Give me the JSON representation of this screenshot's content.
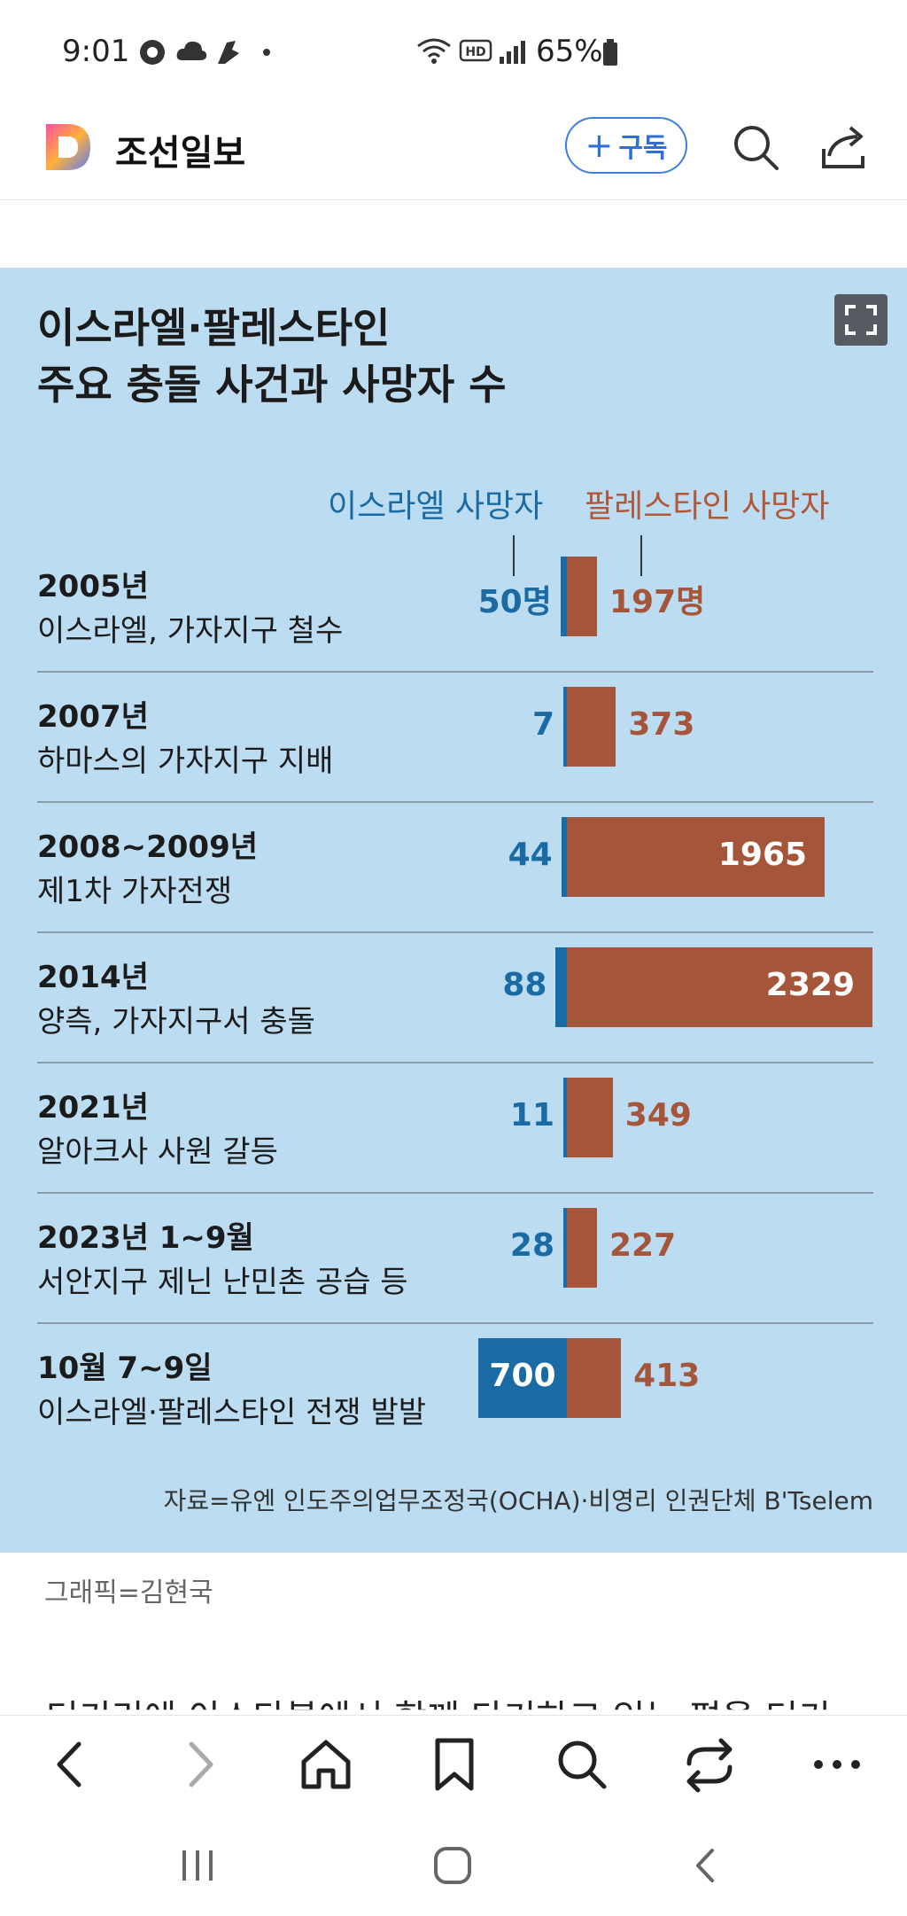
{
  "status_bar": {
    "time": "9:01",
    "battery": "65%"
  },
  "app_bar": {
    "brand": "조선일보",
    "subscribe_label": "구독"
  },
  "infographic": {
    "title_line1": "이스라엘·팔레스타인",
    "title_line2": "주요 충돌 사건과 사망자 수",
    "legend_israel": "이스라엘 사망자",
    "legend_palestine": "팔레스타인 사망자",
    "source": "자료=유엔 인도주의업무조정국(OCHA)·비영리 인권단체 B'Tselem"
  },
  "chart_data": {
    "type": "bar",
    "title": "이스라엘·팔레스타인 주요 충돌 사건과 사망자 수",
    "categories": [
      {
        "year": "2005년",
        "event": "이스라엘, 가자지구 철수"
      },
      {
        "year": "2007년",
        "event": "하마스의 가자지구 지배"
      },
      {
        "year": "2008~2009년",
        "event": "제1차 가자전쟁"
      },
      {
        "year": "2014년",
        "event": "양측, 가자지구서 충돌"
      },
      {
        "year": "2021년",
        "event": "알아크사 사원 갈등"
      },
      {
        "year": "2023년 1~9월",
        "event": "서안지구 제닌 난민촌 공습 등"
      },
      {
        "year": "10월 7~9일",
        "event": "이스라엘·팔레스타인 전쟁 발발"
      }
    ],
    "series": [
      {
        "name": "이스라엘 사망자",
        "values": [
          50,
          7,
          44,
          88,
          11,
          28,
          700
        ],
        "labels": [
          "50명",
          "7",
          "44",
          "88",
          "11",
          "28",
          "700"
        ],
        "color": "#1a6aa3"
      },
      {
        "name": "팔레스타인 사망자",
        "values": [
          197,
          373,
          1965,
          2329,
          349,
          227,
          413
        ],
        "labels": [
          "197명",
          "373",
          "1965",
          "2329",
          "349",
          "227",
          "413"
        ],
        "color": "#a4553a"
      }
    ]
  },
  "caption": "그래픽=김현국",
  "article_cut_text": "터키리에 이스타불에서 함께 타기하고 있는 편을 터키"
}
